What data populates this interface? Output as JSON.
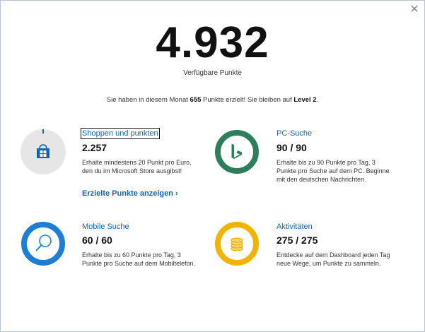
{
  "header": {
    "points_total": "4.932",
    "points_label": "Verfügbare Punkte",
    "summary_before": "Sie haben in diesem Monat ",
    "summary_points": "655",
    "summary_middle": " Punkte erzielt! Sie bleiben auf ",
    "summary_level": "Level 2",
    "summary_after": "."
  },
  "cards": {
    "shopping": {
      "title": "Shoppen und punkten",
      "value": "2.257",
      "description": "Erhalte mindestens 20 Punkt pro Euro, den du im Microsoft Store ausgibst!",
      "link": "Erzielte Punkte anzeigen",
      "icon": "store-bag-icon",
      "progress": 0,
      "color": "#0e66b3"
    },
    "pc_search": {
      "title": "PC-Suche",
      "value": "90 / 90",
      "description": "Erhalte bis zu 90 Punkte pro Tag, 3 Punkte pro Suche auf dem PC. Beginne mit den deutschen Nachrichten.",
      "icon": "bing-icon",
      "progress": 1,
      "color": "#2e7d5b"
    },
    "mobile_search": {
      "title": "Mobile Suche",
      "value": "60 / 60",
      "description": "Erhalte bis zu 60 Punkte pro Tag, 3 Punkte pro Suche auf dem Mobiltelefon.",
      "icon": "magnifier-icon",
      "progress": 1,
      "color": "#1e7ed6"
    },
    "activities": {
      "title": "Aktivitäten",
      "value": "275 / 275",
      "description": "Entdecke auf dem Dashboard jeden Tag neue Wege, um Punkte zu sammeln.",
      "icon": "coins-icon",
      "progress": 1,
      "color": "#f0b400"
    }
  }
}
